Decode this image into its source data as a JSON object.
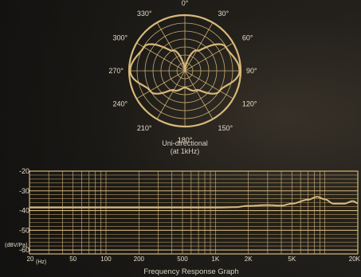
{
  "accent": "#d8b97a",
  "polar": {
    "angle_labels": [
      "0°",
      "30°",
      "60°",
      "90°",
      "120°",
      "150°",
      "180°",
      "210°",
      "240°",
      "270°",
      "300°",
      "330°"
    ],
    "caption_line1": "Uni-directional",
    "caption_line2": "(at 1kHz)"
  },
  "frequency": {
    "y_tick_labels": [
      "-20",
      "-30",
      "-40",
      "-50",
      "-60"
    ],
    "y_unit_label": "(dBV/Pa)",
    "x_tick_labels": [
      "20",
      "50",
      "100",
      "200",
      "500",
      "1K",
      "2K",
      "5K",
      "20K"
    ],
    "x_unit_label": "(Hz)",
    "title": "Frequency Response Graph"
  },
  "chart_data": [
    {
      "type": "line",
      "subtype": "polar",
      "angles_deg": [
        0,
        30,
        60,
        90,
        120,
        150,
        180,
        210,
        240,
        270,
        300,
        330
      ],
      "series": [
        {
          "values": [
            0.0,
            0.42,
            0.85,
            0.98,
            0.72,
            0.4,
            0.3,
            0.4,
            0.72,
            0.98,
            0.85,
            0.42
          ]
        }
      ],
      "rings": 7,
      "spokes_deg": 30,
      "grid": true
    },
    {
      "type": "line",
      "xscale": "log",
      "x": [
        20,
        50,
        100,
        200,
        500,
        1000,
        1500,
        2000,
        3000,
        4000,
        5000,
        7000,
        8500,
        10000,
        12000,
        15000,
        18000,
        20000
      ],
      "series": [
        {
          "values": [
            -38.5,
            -38.5,
            -38.5,
            -38.5,
            -38.5,
            -38.5,
            -38.3,
            -37.6,
            -37.2,
            -37.5,
            -36.5,
            -34.5,
            -33.0,
            -34.3,
            -36.5,
            -36.5,
            -35.2,
            -36.2
          ]
        }
      ],
      "xlim": [
        20,
        20000
      ],
      "ylim": [
        -62,
        -20
      ],
      "x_ticks": [
        20,
        50,
        100,
        200,
        500,
        1000,
        2000,
        5000,
        20000
      ],
      "y_ticks": [
        -20,
        -30,
        -40,
        -50,
        -60
      ],
      "grid": true
    }
  ]
}
